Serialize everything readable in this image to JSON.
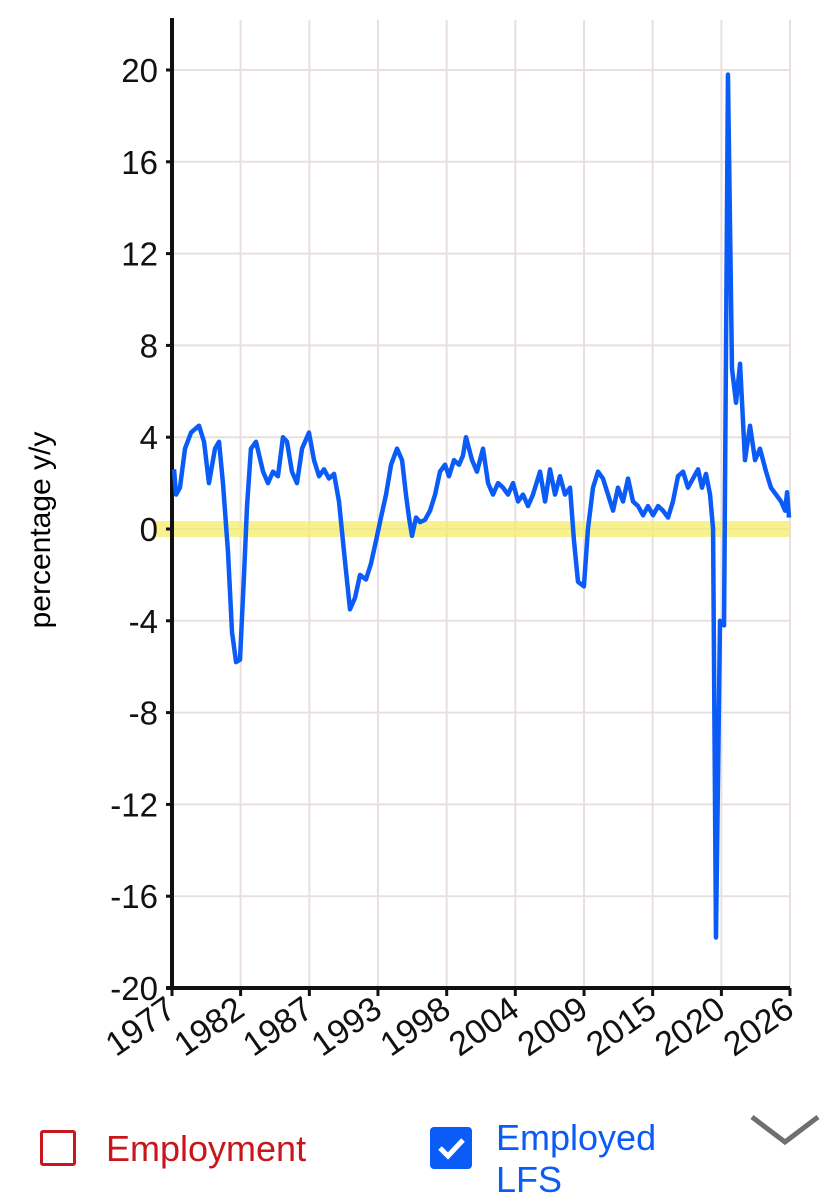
{
  "chart_data": {
    "type": "line",
    "y_label": "percentage y/y",
    "xlim": [
      1977,
      2026
    ],
    "xticks": [
      {
        "value": 1977,
        "label": "1977"
      },
      {
        "value": 1982.44,
        "label": "1982"
      },
      {
        "value": 1987.89,
        "label": "1987"
      },
      {
        "value": 1993.33,
        "label": "1993"
      },
      {
        "value": 1998.78,
        "label": "1998"
      },
      {
        "value": 2004.22,
        "label": "2004"
      },
      {
        "value": 2009.67,
        "label": "2009"
      },
      {
        "value": 2015.11,
        "label": "2015"
      },
      {
        "value": 2020.56,
        "label": "2020"
      },
      {
        "value": 2026,
        "label": "2026"
      }
    ],
    "ylim": [
      -20,
      20
    ],
    "yticks": [
      -20,
      -16,
      -12,
      -8,
      -4,
      0,
      4,
      8,
      12,
      16,
      20
    ],
    "grid": true,
    "x": [
      1977.16,
      1977.32,
      1977.63,
      1978.03,
      1978.51,
      1979.14,
      1979.54,
      1979.93,
      1980.41,
      1980.73,
      1981.04,
      1981.44,
      1981.76,
      1982.08,
      1982.39,
      1982.71,
      1982.95,
      1983.26,
      1983.66,
      1984.22,
      1984.61,
      1985.01,
      1985.4,
      1985.8,
      1986.12,
      1986.51,
      1986.91,
      1987.31,
      1987.86,
      1988.26,
      1988.66,
      1989.05,
      1989.45,
      1989.85,
      1990.24,
      1990.64,
      1991.11,
      1991.51,
      1991.91,
      1992.38,
      1992.78,
      1993.18,
      1993.57,
      1993.97,
      1994.37,
      1994.84,
      1995.24,
      1995.55,
      1995.79,
      1996.03,
      1996.35,
      1996.67,
      1997.06,
      1997.46,
      1997.86,
      1998.25,
      1998.65,
      1998.96,
      1999.36,
      1999.76,
      2000.07,
      2000.31,
      2000.79,
      2001.18,
      2001.66,
      2002.06,
      2002.45,
      2002.85,
      2003.25,
      2003.64,
      2004.04,
      2004.44,
      2004.83,
      2005.23,
      2005.62,
      2006.18,
      2006.58,
      2006.97,
      2007.37,
      2007.76,
      2008.16,
      2008.56,
      2008.87,
      2009.19,
      2009.66,
      2009.98,
      2010.38,
      2010.78,
      2011.17,
      2011.57,
      2011.97,
      2012.36,
      2012.76,
      2013.16,
      2013.55,
      2013.95,
      2014.35,
      2014.74,
      2015.14,
      2015.54,
      2015.93,
      2016.33,
      2016.72,
      2017.12,
      2017.52,
      2017.91,
      2018.31,
      2018.71,
      2019.02,
      2019.34,
      2019.66,
      2019.9,
      2020.13,
      2020.45,
      2020.77,
      2021.08,
      2021.4,
      2021.72,
      2022.04,
      2022.43,
      2022.83,
      2023.23,
      2023.62,
      2024.1,
      2024.49,
      2024.89,
      2025.29,
      2025.61,
      2025.77,
      2025.92
    ],
    "series": [
      {
        "name": "Employed LFS",
        "color": "#0b5cf7",
        "checked": true,
        "values": [
          2.6,
          1.5,
          1.8,
          3.5,
          4.2,
          4.5,
          3.8,
          2.0,
          3.5,
          3.8,
          2.0,
          -1,
          -4.5,
          -5.8,
          -5.7,
          -2,
          1,
          3.5,
          3.8,
          2.5,
          2,
          2.5,
          2.3,
          4,
          3.8,
          2.5,
          2,
          3.5,
          4.2,
          3,
          2.3,
          2.6,
          2.2,
          2.4,
          1.2,
          -1,
          -3.5,
          -3,
          -2,
          -2.2,
          -1.5,
          -0.5,
          0.5,
          1.5,
          2.8,
          3.5,
          3,
          1.5,
          0.5,
          -0.3,
          0.5,
          0.3,
          0.4,
          0.8,
          1.5,
          2.5,
          2.8,
          2.3,
          3,
          2.8,
          3.2,
          4,
          3,
          2.5,
          3.5,
          2,
          1.5,
          2,
          1.8,
          1.5,
          2,
          1.2,
          1.5,
          1,
          1.5,
          2.5,
          1.2,
          2.6,
          1.5,
          2.3,
          1.5,
          1.8,
          -0.5,
          -2.3,
          -2.5,
          0,
          1.8,
          2.5,
          2.2,
          1.5,
          0.8,
          1.8,
          1.2,
          2.2,
          1.2,
          1,
          0.6,
          1,
          0.6,
          1,
          0.8,
          0.5,
          1.2,
          2.3,
          2.5,
          1.8,
          2.2,
          2.6,
          1.8,
          2.4,
          1.5,
          0,
          -17.8,
          -4,
          -4.2,
          19.8,
          7,
          5.5,
          7.2,
          3,
          4.5,
          3,
          3.5,
          2.5,
          1.8,
          1.5,
          1.2,
          0.8,
          1.6,
          0.5
        ]
      }
    ],
    "inactive_series": [
      {
        "name": "Employment",
        "color": "#c8161d",
        "checked": false
      }
    ]
  }
}
